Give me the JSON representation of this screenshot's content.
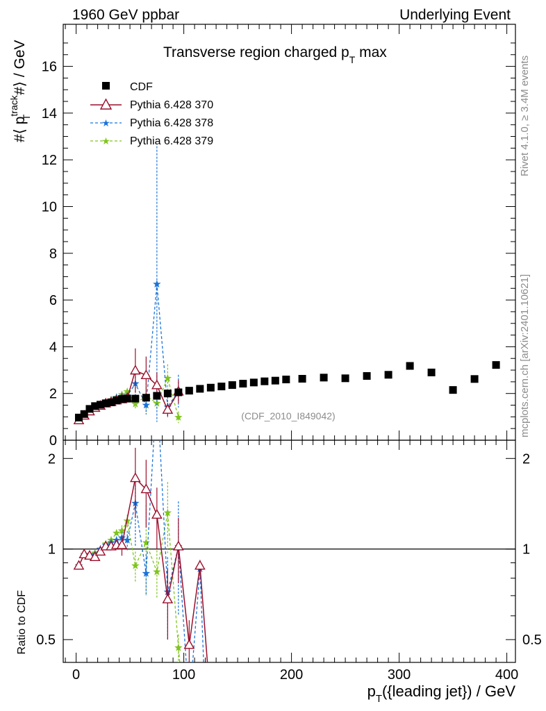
{
  "header": {
    "left": "1960 GeV ppbar",
    "right": "Underlying Event"
  },
  "side_labels": {
    "rivet": "Rivet 4.1.0, ≥ 3.4M events",
    "mcplots": "mcplots.cern.ch [arXiv:2401.10621]"
  },
  "colors": {
    "cdf": "#000000",
    "p370": "#9a0e2a",
    "p378": "#1a73d9",
    "p379": "#7fc41c",
    "ref_line": "#000000",
    "watermark": "#8c8c8c"
  },
  "chart_data": [
    {
      "id": "main",
      "type": "scatter",
      "title": "Transverse region charged pT max",
      "title_parts": {
        "base": "Transverse region charged p",
        "sub": "T",
        "tail": " max"
      },
      "ylabel": "#⟨ p_T^track #⟩ / GeV",
      "ylabel_parts": {
        "pre": "#⟨ p",
        "sup": "track",
        "sub": "T",
        "post": " #⟩ / GeV"
      },
      "xlim": [
        -12,
        408
      ],
      "ylim": [
        0,
        17.8
      ],
      "yticks": [
        0,
        2,
        4,
        6,
        8,
        10,
        12,
        14,
        16
      ],
      "ytick_labels": [
        "0",
        "2",
        "4",
        "6",
        "8",
        "10",
        "12",
        "14",
        "16"
      ],
      "watermark": "(CDF_2010_I849042)",
      "legend_position": "top-left",
      "series": [
        {
          "name": "CDF",
          "marker": "square",
          "x": [
            2.5,
            7.5,
            12.5,
            17.5,
            22.5,
            27.5,
            32.5,
            37.5,
            42.5,
            47.5,
            55,
            65,
            75,
            85,
            95,
            105,
            115,
            125,
            135,
            145,
            155,
            165,
            175,
            185,
            195,
            210,
            230,
            250,
            270,
            290,
            310,
            330,
            350,
            370,
            390
          ],
          "y": [
            0.97,
            1.12,
            1.34,
            1.46,
            1.52,
            1.58,
            1.62,
            1.7,
            1.76,
            1.78,
            1.78,
            1.82,
            1.9,
            2.0,
            2.05,
            2.12,
            2.2,
            2.25,
            2.3,
            2.36,
            2.42,
            2.47,
            2.52,
            2.55,
            2.6,
            2.63,
            2.68,
            2.65,
            2.75,
            2.8,
            3.18,
            2.9,
            2.15,
            2.62,
            3.22
          ]
        },
        {
          "name": "Pythia 6.428 370",
          "marker": "open-triangle",
          "line": "solid",
          "x": [
            2.5,
            7.5,
            12.5,
            17.5,
            22.5,
            27.5,
            32.5,
            37.5,
            42.5,
            47.5,
            55,
            65,
            75,
            85,
            95
          ],
          "y": [
            0.85,
            1.05,
            1.23,
            1.38,
            1.47,
            1.57,
            1.63,
            1.7,
            1.75,
            1.79,
            2.98,
            2.78,
            2.35,
            1.3,
            2.08
          ],
          "err": [
            0.03,
            0.03,
            0.04,
            0.04,
            0.05,
            0.05,
            0.06,
            0.07,
            0.08,
            0.1,
            0.95,
            0.8,
            0.55,
            0.3,
            0.5
          ]
        },
        {
          "name": "Pythia 6.428 378",
          "marker": "star",
          "line": "dashed",
          "x": [
            2.5,
            7.5,
            12.5,
            17.5,
            22.5,
            27.5,
            32.5,
            37.5,
            42.5,
            47.5,
            55,
            65,
            75,
            85,
            95
          ],
          "y": [
            0.88,
            1.08,
            1.28,
            1.42,
            1.53,
            1.63,
            1.72,
            1.82,
            1.88,
            1.9,
            2.42,
            1.5,
            6.68,
            1.42,
            2.1
          ],
          "err": [
            0.03,
            0.03,
            0.04,
            0.04,
            0.05,
            0.05,
            0.06,
            0.07,
            0.08,
            0.12,
            0.6,
            0.4,
            5.9,
            0.45,
            0.7
          ]
        },
        {
          "name": "Pythia 6.428 379",
          "marker": "star",
          "line": "dashed",
          "x": [
            2.5,
            7.5,
            12.5,
            17.5,
            22.5,
            27.5,
            32.5,
            37.5,
            42.5,
            47.5,
            55,
            65,
            75,
            85,
            95
          ],
          "y": [
            0.86,
            1.06,
            1.26,
            1.4,
            1.5,
            1.62,
            1.73,
            1.84,
            1.95,
            2.08,
            1.55,
            1.9,
            1.58,
            2.65,
            0.98
          ],
          "err": [
            0.03,
            0.03,
            0.04,
            0.04,
            0.05,
            0.05,
            0.06,
            0.07,
            0.08,
            0.1,
            0.2,
            0.7,
            0.3,
            0.6,
            0.25
          ]
        }
      ]
    },
    {
      "id": "ratio",
      "type": "line",
      "ylabel": "Ratio to CDF",
      "xlabel": "p_T({leading jet}) / GeV",
      "xlabel_parts": {
        "pre": "p",
        "sub": "T",
        "post": "({leading jet}) / GeV"
      },
      "yscale": "log",
      "xlim": [
        -12,
        408
      ],
      "ylim": [
        0.42,
        2.3
      ],
      "yticks": [
        0.5,
        1,
        2
      ],
      "ytick_labels": [
        "0.5",
        "1",
        "2"
      ],
      "xticks": [
        0,
        100,
        200,
        300,
        400
      ],
      "xtick_labels": [
        "0",
        "100",
        "200",
        "300",
        "400"
      ],
      "reference_line": 1,
      "series": [
        {
          "name": "Pythia 6.428 370",
          "x": [
            2.5,
            7.5,
            12.5,
            17.5,
            22.5,
            27.5,
            32.5,
            37.5,
            42.5,
            55,
            65,
            75,
            85,
            95,
            105,
            115,
            125
          ],
          "y": [
            0.88,
            0.96,
            0.95,
            0.94,
            0.98,
            1.02,
            1.02,
            1.03,
            1.03,
            1.72,
            1.58,
            1.3,
            0.68,
            1.02,
            0.48,
            0.88,
            0.3
          ],
          "err": [
            0.02,
            0.02,
            0.02,
            0.02,
            0.02,
            0.02,
            0.03,
            0.03,
            0.08,
            0.45,
            0.4,
            0.3,
            0.18,
            0.25,
            0.1,
            0.04,
            0.0
          ]
        },
        {
          "name": "Pythia 6.428 378",
          "x": [
            2.5,
            7.5,
            12.5,
            17.5,
            22.5,
            27.5,
            32.5,
            37.5,
            42.5,
            47.5,
            55,
            65,
            75,
            85,
            95,
            105,
            115,
            120
          ],
          "y": [
            0.88,
            0.96,
            0.95,
            0.96,
            1.0,
            1.03,
            1.05,
            1.07,
            1.09,
            1.07,
            1.42,
            0.83,
            3.5,
            0.72,
            1.02,
            0.3,
            0.86,
            0.3
          ],
          "err": [
            0.02,
            0.02,
            0.02,
            0.02,
            0.02,
            0.02,
            0.03,
            0.03,
            0.05,
            0.08,
            0.4,
            0.13,
            0.0,
            0.22,
            0.42,
            0.0,
            0.05,
            0.0
          ]
        },
        {
          "name": "Pythia 6.428 379",
          "x": [
            2.5,
            7.5,
            12.5,
            17.5,
            22.5,
            27.5,
            32.5,
            37.5,
            42.5,
            47.5,
            55,
            65,
            75,
            85,
            95,
            100
          ],
          "y": [
            0.88,
            0.96,
            0.96,
            0.97,
            1.0,
            1.04,
            1.07,
            1.13,
            1.15,
            1.24,
            0.88,
            1.05,
            0.84,
            1.32,
            0.47,
            0.3
          ],
          "err": [
            0.02,
            0.02,
            0.02,
            0.02,
            0.02,
            0.02,
            0.03,
            0.03,
            0.05,
            0.06,
            0.1,
            0.35,
            0.15,
            0.35,
            0.05,
            0.0
          ]
        }
      ]
    }
  ]
}
